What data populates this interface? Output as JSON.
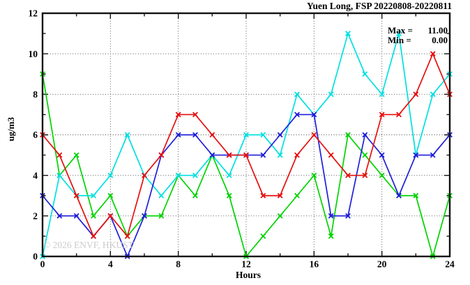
{
  "title": "Yuen Long, FSP 20220808-20220811",
  "stats": {
    "lines": [
      {
        "label": "Max =",
        "value": "11.00"
      },
      {
        "label": "Min =",
        "value": "0.00"
      }
    ]
  },
  "watermark": "© 2026 ENVF, HKUST",
  "colors": {
    "red": "#e60f0f",
    "green": "#00d400",
    "blue": "#1f1fd9",
    "cyan": "#00e0e0",
    "axis": "#111111",
    "grid": "#444444",
    "watermark_gray": "#cccccc"
  },
  "chart_data": {
    "type": "line",
    "title": "Yuen Long, FSP 20220808-20220811",
    "xlabel": "Hours",
    "ylabel": "ug/m3",
    "xlim": [
      0,
      24
    ],
    "ylim": [
      0,
      12
    ],
    "grid": true,
    "x_major_ticks": [
      0,
      4,
      8,
      12,
      16,
      20,
      24
    ],
    "x_minor_ticks": [
      2,
      6,
      10,
      14,
      18,
      22
    ],
    "y_major_ticks": [
      0,
      2,
      4,
      6,
      8,
      10,
      12
    ],
    "y_minor_ticks": [
      1,
      3,
      5,
      7,
      9,
      11
    ],
    "x_grid": [
      4,
      8,
      12,
      16,
      20
    ],
    "y_grid": [
      2,
      4,
      6,
      8,
      10
    ],
    "x": [
      0,
      1,
      2,
      3,
      4,
      5,
      6,
      7,
      8,
      9,
      10,
      11,
      12,
      13,
      14,
      15,
      16,
      17,
      18,
      19,
      20,
      21,
      22,
      23,
      24
    ],
    "series": [
      {
        "name": "green",
        "color": "#00d400",
        "values": [
          9,
          4,
          5,
          2,
          3,
          1,
          2,
          2,
          4,
          3,
          5,
          3,
          0,
          1,
          2,
          3,
          4,
          1,
          6,
          5,
          4,
          3,
          3,
          0,
          3
        ]
      },
      {
        "name": "cyan",
        "color": "#00e0e0",
        "values": [
          0,
          4,
          3,
          3,
          4,
          6,
          4,
          3,
          4,
          4,
          5,
          4,
          6,
          6,
          5,
          8,
          7,
          8,
          11,
          9,
          8,
          11,
          5,
          8,
          9
        ]
      },
      {
        "name": "blue",
        "color": "#1f1fd9",
        "values": [
          3,
          2,
          2,
          1,
          2,
          0,
          2,
          5,
          6,
          6,
          5,
          5,
          5,
          5,
          6,
          7,
          7,
          2,
          2,
          6,
          5,
          3,
          5,
          5,
          6
        ]
      },
      {
        "name": "red",
        "color": "#e60f0f",
        "values": [
          6,
          5,
          3,
          1,
          2,
          1,
          4,
          5,
          7,
          7,
          6,
          5,
          5,
          3,
          3,
          5,
          6,
          5,
          4,
          4,
          7,
          7,
          8,
          10,
          8
        ]
      }
    ],
    "annotations": [
      "Max = 11.00",
      "Min = 0.00"
    ],
    "legend": "none"
  }
}
